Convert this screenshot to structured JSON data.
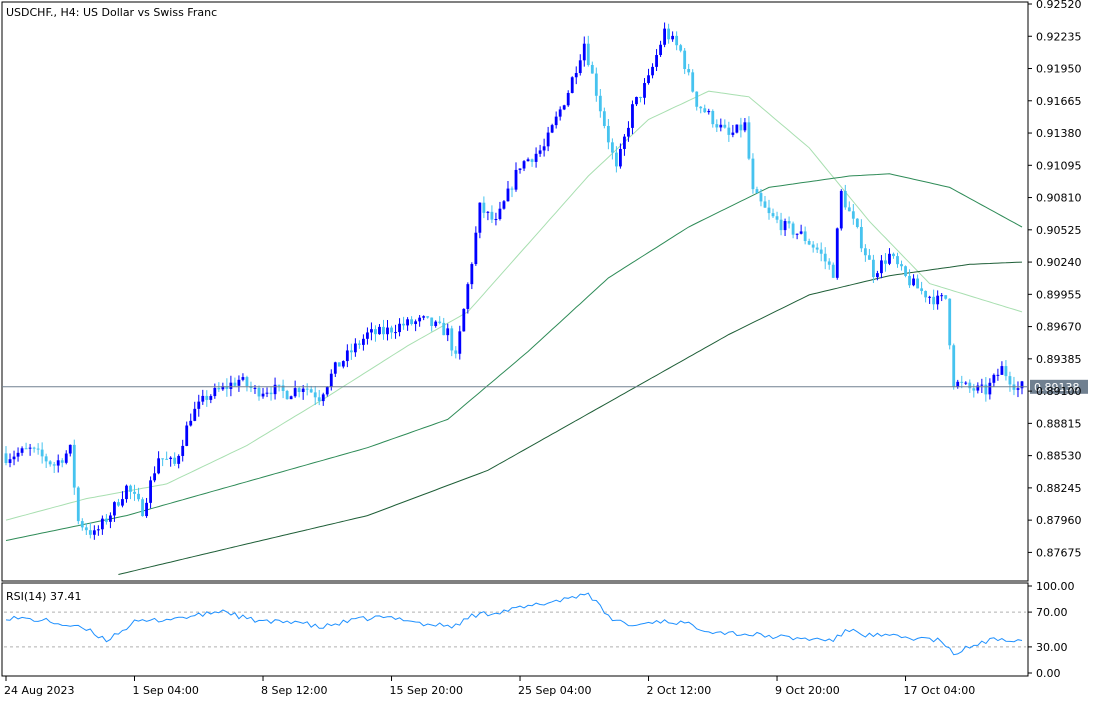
{
  "chart_data": {
    "type": "candlestick",
    "title": "USDCHF., H4:  US Dollar vs Swiss Franc",
    "symbol": "USDCHF.",
    "timeframe": "H4",
    "description": "US Dollar vs Swiss Franc",
    "price_axis": {
      "ticks": [
        "0.92520",
        "0.92235",
        "0.91950",
        "0.91665",
        "0.91380",
        "0.91095",
        "0.90810",
        "0.90525",
        "0.90240",
        "0.89955",
        "0.89670",
        "0.89385",
        "0.89100",
        "0.88815",
        "0.88530",
        "0.88245",
        "0.87960",
        "0.87675"
      ],
      "range": [
        0.8744,
        0.9252
      ]
    },
    "current_price": 0.89138,
    "current_price_label": "0.89138",
    "time_labels": [
      {
        "bar": 0,
        "label": "24 Aug 2023"
      },
      {
        "bar": 32,
        "label": "1 Sep 04:00"
      },
      {
        "bar": 64,
        "label": "8 Sep 12:00"
      },
      {
        "bar": 96,
        "label": "15 Sep 20:00"
      },
      {
        "bar": 128,
        "label": "25 Sep 04:00"
      },
      {
        "bar": 160,
        "label": "2 Oct 12:00"
      },
      {
        "bar": 192,
        "label": "9 Oct 20:00"
      },
      {
        "bar": 224,
        "label": "17 Oct 04:00"
      }
    ],
    "bar_count": 254,
    "close_anchors": [
      [
        0,
        0.8852
      ],
      [
        6,
        0.8858
      ],
      [
        12,
        0.8845
      ],
      [
        16,
        0.8858
      ],
      [
        18,
        0.8795
      ],
      [
        22,
        0.8783
      ],
      [
        26,
        0.8802
      ],
      [
        30,
        0.8825
      ],
      [
        34,
        0.8805
      ],
      [
        38,
        0.8852
      ],
      [
        42,
        0.8845
      ],
      [
        46,
        0.8888
      ],
      [
        50,
        0.8905
      ],
      [
        54,
        0.8912
      ],
      [
        58,
        0.892
      ],
      [
        62,
        0.891
      ],
      [
        66,
        0.8912
      ],
      [
        70,
        0.8908
      ],
      [
        74,
        0.8915
      ],
      [
        78,
        0.8905
      ],
      [
        82,
        0.893
      ],
      [
        86,
        0.8945
      ],
      [
        90,
        0.896
      ],
      [
        94,
        0.8962
      ],
      [
        98,
        0.8968
      ],
      [
        104,
        0.8972
      ],
      [
        110,
        0.8962
      ],
      [
        112,
        0.8938
      ],
      [
        116,
        0.9025
      ],
      [
        118,
        0.9072
      ],
      [
        122,
        0.9058
      ],
      [
        128,
        0.911
      ],
      [
        134,
        0.9125
      ],
      [
        140,
        0.9175
      ],
      [
        144,
        0.9218
      ],
      [
        148,
        0.916
      ],
      [
        152,
        0.9105
      ],
      [
        156,
        0.916
      ],
      [
        160,
        0.9185
      ],
      [
        164,
        0.9228
      ],
      [
        168,
        0.921
      ],
      [
        172,
        0.9165
      ],
      [
        176,
        0.915
      ],
      [
        180,
        0.9135
      ],
      [
        184,
        0.9145
      ],
      [
        186,
        0.9085
      ],
      [
        190,
        0.9065
      ],
      [
        194,
        0.9055
      ],
      [
        198,
        0.9048
      ],
      [
        202,
        0.9035
      ],
      [
        206,
        0.9015
      ],
      [
        208,
        0.9085
      ],
      [
        212,
        0.905
      ],
      [
        216,
        0.9015
      ],
      [
        220,
        0.903
      ],
      [
        224,
        0.901
      ],
      [
        228,
        0.8998
      ],
      [
        232,
        0.899
      ],
      [
        234,
        0.8992
      ],
      [
        236,
        0.8918
      ],
      [
        240,
        0.8912
      ],
      [
        244,
        0.891
      ],
      [
        248,
        0.893
      ],
      [
        252,
        0.8912
      ],
      [
        253,
        0.8914
      ]
    ],
    "moving_averages": [
      {
        "period": "fast",
        "color": "#a8dfb0",
        "points": [
          [
            0,
            0.8796
          ],
          [
            20,
            0.8815
          ],
          [
            40,
            0.8828
          ],
          [
            60,
            0.8862
          ],
          [
            80,
            0.8905
          ],
          [
            100,
            0.895
          ],
          [
            115,
            0.898
          ],
          [
            130,
            0.904
          ],
          [
            145,
            0.91
          ],
          [
            160,
            0.915
          ],
          [
            175,
            0.9175
          ],
          [
            185,
            0.917
          ],
          [
            200,
            0.9125
          ],
          [
            215,
            0.906
          ],
          [
            230,
            0.9005
          ],
          [
            253,
            0.898
          ]
        ]
      },
      {
        "period": "medium",
        "color": "#2e8b57",
        "points": [
          [
            0,
            0.8778
          ],
          [
            30,
            0.88
          ],
          [
            60,
            0.883
          ],
          [
            90,
            0.886
          ],
          [
            110,
            0.8885
          ],
          [
            130,
            0.8945
          ],
          [
            150,
            0.901
          ],
          [
            170,
            0.9055
          ],
          [
            190,
            0.909
          ],
          [
            210,
            0.91
          ],
          [
            220,
            0.9102
          ],
          [
            235,
            0.909
          ],
          [
            253,
            0.9055
          ]
        ]
      },
      {
        "period": "slow",
        "color": "#1e5e37",
        "points": [
          [
            28,
            0.8748
          ],
          [
            60,
            0.8775
          ],
          [
            90,
            0.88
          ],
          [
            120,
            0.884
          ],
          [
            150,
            0.89
          ],
          [
            180,
            0.896
          ],
          [
            200,
            0.8995
          ],
          [
            220,
            0.9012
          ],
          [
            240,
            0.9022
          ],
          [
            253,
            0.9024
          ]
        ]
      }
    ],
    "rsi": {
      "label": "RSI(14) 37.41",
      "period": 14,
      "value": 37.41,
      "range": [
        0,
        100
      ],
      "levels": [
        30,
        70
      ],
      "ticks": [
        "100.00",
        "70.00",
        "30.00",
        "0.00"
      ],
      "color": "#1e90ff",
      "anchors": [
        [
          0,
          64
        ],
        [
          10,
          60
        ],
        [
          20,
          50
        ],
        [
          25,
          38
        ],
        [
          32,
          58
        ],
        [
          40,
          62
        ],
        [
          48,
          66
        ],
        [
          54,
          72
        ],
        [
          60,
          62
        ],
        [
          66,
          58
        ],
        [
          72,
          60
        ],
        [
          78,
          52
        ],
        [
          86,
          60
        ],
        [
          92,
          64
        ],
        [
          100,
          62
        ],
        [
          104,
          56
        ],
        [
          112,
          54
        ],
        [
          116,
          66
        ],
        [
          122,
          70
        ],
        [
          130,
          76
        ],
        [
          138,
          84
        ],
        [
          145,
          92
        ],
        [
          150,
          64
        ],
        [
          156,
          54
        ],
        [
          162,
          60
        ],
        [
          168,
          58
        ],
        [
          176,
          48
        ],
        [
          186,
          44
        ],
        [
          196,
          40
        ],
        [
          206,
          38
        ],
        [
          210,
          50
        ],
        [
          214,
          44
        ],
        [
          220,
          42
        ],
        [
          226,
          40
        ],
        [
          232,
          38
        ],
        [
          236,
          22
        ],
        [
          240,
          30
        ],
        [
          244,
          36
        ],
        [
          248,
          40
        ],
        [
          253,
          37.41
        ]
      ]
    },
    "colors": {
      "bull": "#0000ff",
      "bear": "#46c3ef",
      "grid": "#b8b8b8",
      "price_line": "#708090",
      "level_line": "#b0b0b0"
    },
    "grid": false,
    "legend": "none"
  }
}
